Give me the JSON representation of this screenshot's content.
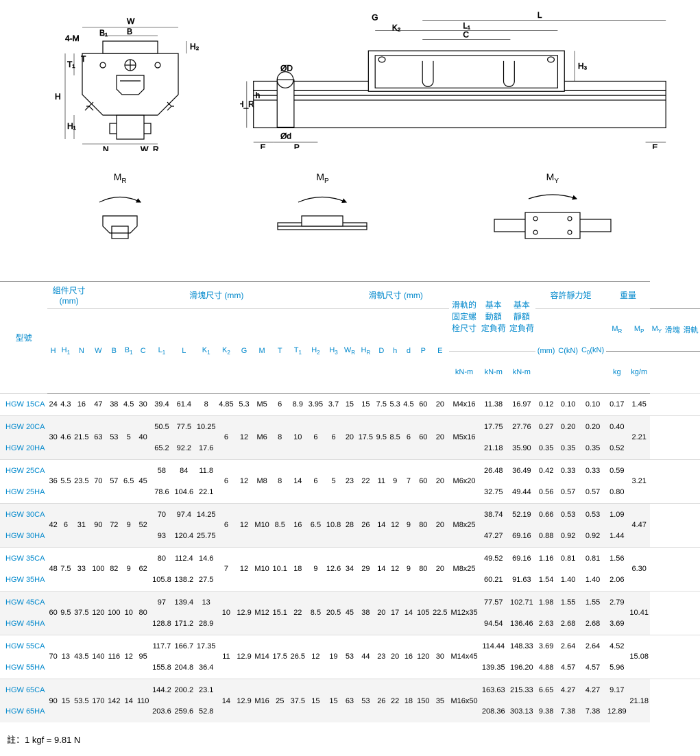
{
  "diagrams": {
    "cross": {
      "labels": [
        "4-M",
        "W",
        "B",
        "B₁",
        "T₁",
        "H",
        "H₁",
        "H₂",
        "N",
        "W_R",
        "T"
      ]
    },
    "side": {
      "labels": [
        "G",
        "K₂",
        "L",
        "L₁",
        "C",
        "H₃",
        "ØD",
        "H_R",
        "h",
        "Ød",
        "E",
        "P",
        "E"
      ]
    }
  },
  "moments": {
    "mr": "M_R",
    "mp": "M_P",
    "my": "M_Y"
  },
  "groupHeaders": {
    "model": "型號",
    "assembly": "組件尺寸\n(mm)",
    "block": "滑塊尺寸 (mm)",
    "rail": "滑軌尺寸 (mm)",
    "bolt": "滑軌的\n固定螺\n栓尺寸",
    "dyn": "基本\n動額\n定負荷",
    "stat": "基本\n靜額\n定負荷",
    "moment": "容許靜力矩",
    "weight": "重量"
  },
  "cols": [
    "H",
    "H₁",
    "N",
    "W",
    "B",
    "B₁",
    "C",
    "L₁",
    "L",
    "K₁",
    "K₂",
    "G",
    "M",
    "T",
    "T₁",
    "H₂",
    "H₃",
    "W_R",
    "H_R",
    "D",
    "h",
    "d",
    "P",
    "E",
    "(mm)",
    "C(kN)",
    "C₀(kN)",
    "M_R",
    "M_P",
    "M_Y",
    "滑塊",
    "滑軌"
  ],
  "units": {
    "mr": "kN-m",
    "mp": "kN-m",
    "my": "kN-m",
    "block": "kg",
    "rail": "kg/m"
  },
  "rows": [
    {
      "m": "HGW 15CA",
      "d": [
        "24",
        "4.3",
        "16",
        "47",
        "38",
        "4.5",
        "30",
        "39.4",
        "61.4",
        "8",
        "4.85",
        "5.3",
        "M5",
        "6",
        "8.9",
        "3.95",
        "3.7",
        "15",
        "15",
        "7.5",
        "5.3",
        "4.5",
        "60",
        "20",
        "M4x16",
        "11.38",
        "16.97",
        "0.12",
        "0.10",
        "0.10",
        "0.17",
        "1.45"
      ]
    },
    {
      "m": "HGW 20CA",
      "d": [
        "30",
        "4.6",
        "21.5",
        "63",
        "53",
        "5",
        "40",
        "50.5",
        "77.5",
        "10.25",
        "6",
        "12",
        "M6",
        "8",
        "10",
        "6",
        "6",
        "20",
        "17.5",
        "9.5",
        "8.5",
        "6",
        "60",
        "20",
        "M5x16",
        "17.75",
        "27.76",
        "0.27",
        "0.20",
        "0.20",
        "0.40",
        "2.21"
      ],
      "pair": [
        0,
        1,
        2,
        3,
        4,
        5,
        6,
        10,
        11,
        12,
        13,
        14,
        15,
        16,
        17,
        18,
        19,
        20,
        21,
        22,
        23,
        24,
        31
      ]
    },
    {
      "m": "HGW 20HA",
      "d": [
        "",
        "",
        "",
        "",
        "",
        "",
        "",
        "65.2",
        "92.2",
        "17.6",
        "",
        "",
        "",
        "",
        "",
        "",
        "",
        "",
        "",
        "",
        "",
        "",
        "",
        "",
        "",
        "21.18",
        "35.90",
        "0.35",
        "0.35",
        "0.35",
        "0.52",
        ""
      ]
    },
    {
      "m": "HGW 25CA",
      "d": [
        "36",
        "5.5",
        "23.5",
        "70",
        "57",
        "6.5",
        "45",
        "58",
        "84",
        "11.8",
        "6",
        "12",
        "M8",
        "8",
        "14",
        "6",
        "5",
        "23",
        "22",
        "11",
        "9",
        "7",
        "60",
        "20",
        "M6x20",
        "26.48",
        "36.49",
        "0.42",
        "0.33",
        "0.33",
        "0.59",
        "3.21"
      ],
      "pair": [
        0,
        1,
        2,
        3,
        4,
        5,
        6,
        10,
        11,
        12,
        13,
        14,
        15,
        16,
        17,
        18,
        19,
        20,
        21,
        22,
        23,
        24,
        31
      ]
    },
    {
      "m": "HGW 25HA",
      "d": [
        "",
        "",
        "",
        "",
        "",
        "",
        "",
        "78.6",
        "104.6",
        "22.1",
        "",
        "",
        "",
        "",
        "",
        "",
        "",
        "",
        "",
        "",
        "",
        "",
        "",
        "",
        "",
        "32.75",
        "49.44",
        "0.56",
        "0.57",
        "0.57",
        "0.80",
        ""
      ]
    },
    {
      "m": "HGW 30CA",
      "d": [
        "42",
        "6",
        "31",
        "90",
        "72",
        "9",
        "52",
        "70",
        "97.4",
        "14.25",
        "6",
        "12",
        "M10",
        "8.5",
        "16",
        "6.5",
        "10.8",
        "28",
        "26",
        "14",
        "12",
        "9",
        "80",
        "20",
        "M8x25",
        "38.74",
        "52.19",
        "0.66",
        "0.53",
        "0.53",
        "1.09",
        "4.47"
      ],
      "pair": [
        0,
        1,
        2,
        3,
        4,
        5,
        6,
        10,
        11,
        12,
        13,
        14,
        15,
        16,
        17,
        18,
        19,
        20,
        21,
        22,
        23,
        24,
        31
      ]
    },
    {
      "m": "HGW 30HA",
      "d": [
        "",
        "",
        "",
        "",
        "",
        "",
        "",
        "93",
        "120.4",
        "25.75",
        "",
        "",
        "",
        "",
        "",
        "",
        "",
        "",
        "",
        "",
        "",
        "",
        "",
        "",
        "",
        "47.27",
        "69.16",
        "0.88",
        "0.92",
        "0.92",
        "1.44",
        ""
      ]
    },
    {
      "m": "HGW 35CA",
      "d": [
        "48",
        "7.5",
        "33",
        "100",
        "82",
        "9",
        "62",
        "80",
        "112.4",
        "14.6",
        "7",
        "12",
        "M10",
        "10.1",
        "18",
        "9",
        "12.6",
        "34",
        "29",
        "14",
        "12",
        "9",
        "80",
        "20",
        "M8x25",
        "49.52",
        "69.16",
        "1.16",
        "0.81",
        "0.81",
        "1.56",
        "6.30"
      ],
      "pair": [
        0,
        1,
        2,
        3,
        4,
        5,
        6,
        10,
        11,
        12,
        13,
        14,
        15,
        16,
        17,
        18,
        19,
        20,
        21,
        22,
        23,
        24,
        31
      ]
    },
    {
      "m": "HGW 35HA",
      "d": [
        "",
        "",
        "",
        "",
        "",
        "",
        "",
        "105.8",
        "138.2",
        "27.5",
        "",
        "",
        "",
        "",
        "",
        "",
        "",
        "",
        "",
        "",
        "",
        "",
        "",
        "",
        "",
        "60.21",
        "91.63",
        "1.54",
        "1.40",
        "1.40",
        "2.06",
        ""
      ]
    },
    {
      "m": "HGW 45CA",
      "d": [
        "60",
        "9.5",
        "37.5",
        "120",
        "100",
        "10",
        "80",
        "97",
        "139.4",
        "13",
        "10",
        "12.9",
        "M12",
        "15.1",
        "22",
        "8.5",
        "20.5",
        "45",
        "38",
        "20",
        "17",
        "14",
        "105",
        "22.5",
        "M12x35",
        "77.57",
        "102.71",
        "1.98",
        "1.55",
        "1.55",
        "2.79",
        "10.41"
      ],
      "pair": [
        0,
        1,
        2,
        3,
        4,
        5,
        6,
        10,
        11,
        12,
        13,
        14,
        15,
        16,
        17,
        18,
        19,
        20,
        21,
        22,
        23,
        24,
        31
      ]
    },
    {
      "m": "HGW 45HA",
      "d": [
        "",
        "",
        "",
        "",
        "",
        "",
        "",
        "128.8",
        "171.2",
        "28.9",
        "",
        "",
        "",
        "",
        "",
        "",
        "",
        "",
        "",
        "",
        "",
        "",
        "",
        "",
        "",
        "94.54",
        "136.46",
        "2.63",
        "2.68",
        "2.68",
        "3.69",
        ""
      ]
    },
    {
      "m": "HGW 55CA",
      "d": [
        "70",
        "13",
        "43.5",
        "140",
        "116",
        "12",
        "95",
        "117.7",
        "166.7",
        "17.35",
        "11",
        "12.9",
        "M14",
        "17.5",
        "26.5",
        "12",
        "19",
        "53",
        "44",
        "23",
        "20",
        "16",
        "120",
        "30",
        "M14x45",
        "114.44",
        "148.33",
        "3.69",
        "2.64",
        "2.64",
        "4.52",
        "15.08"
      ],
      "pair": [
        0,
        1,
        2,
        3,
        4,
        5,
        6,
        10,
        11,
        12,
        13,
        14,
        15,
        16,
        17,
        18,
        19,
        20,
        21,
        22,
        23,
        24,
        31
      ]
    },
    {
      "m": "HGW 55HA",
      "d": [
        "",
        "",
        "",
        "",
        "",
        "",
        "",
        "155.8",
        "204.8",
        "36.4",
        "",
        "",
        "",
        "",
        "",
        "",
        "",
        "",
        "",
        "",
        "",
        "",
        "",
        "",
        "",
        "139.35",
        "196.20",
        "4.88",
        "4.57",
        "4.57",
        "5.96",
        ""
      ]
    },
    {
      "m": "HGW 65CA",
      "d": [
        "90",
        "15",
        "53.5",
        "170",
        "142",
        "14",
        "110",
        "144.2",
        "200.2",
        "23.1",
        "14",
        "12.9",
        "M16",
        "25",
        "37.5",
        "15",
        "15",
        "63",
        "53",
        "26",
        "22",
        "18",
        "150",
        "35",
        "M16x50",
        "163.63",
        "215.33",
        "6.65",
        "4.27",
        "4.27",
        "9.17",
        "21.18"
      ],
      "pair": [
        0,
        1,
        2,
        3,
        4,
        5,
        6,
        10,
        11,
        12,
        13,
        14,
        15,
        16,
        17,
        18,
        19,
        20,
        21,
        22,
        23,
        24,
        31
      ]
    },
    {
      "m": "HGW 65HA",
      "d": [
        "",
        "",
        "",
        "",
        "",
        "",
        "",
        "203.6",
        "259.6",
        "52.8",
        "",
        "",
        "",
        "",
        "",
        "",
        "",
        "",
        "",
        "",
        "",
        "",
        "",
        "",
        "",
        "208.36",
        "303.13",
        "9.38",
        "7.38",
        "7.38",
        "12.89",
        ""
      ]
    }
  ],
  "footnote": "註：1 kgf = 9.81 N",
  "colors": {
    "header": "#0088cc",
    "band": "#f4f4f4",
    "line": "#888888"
  }
}
